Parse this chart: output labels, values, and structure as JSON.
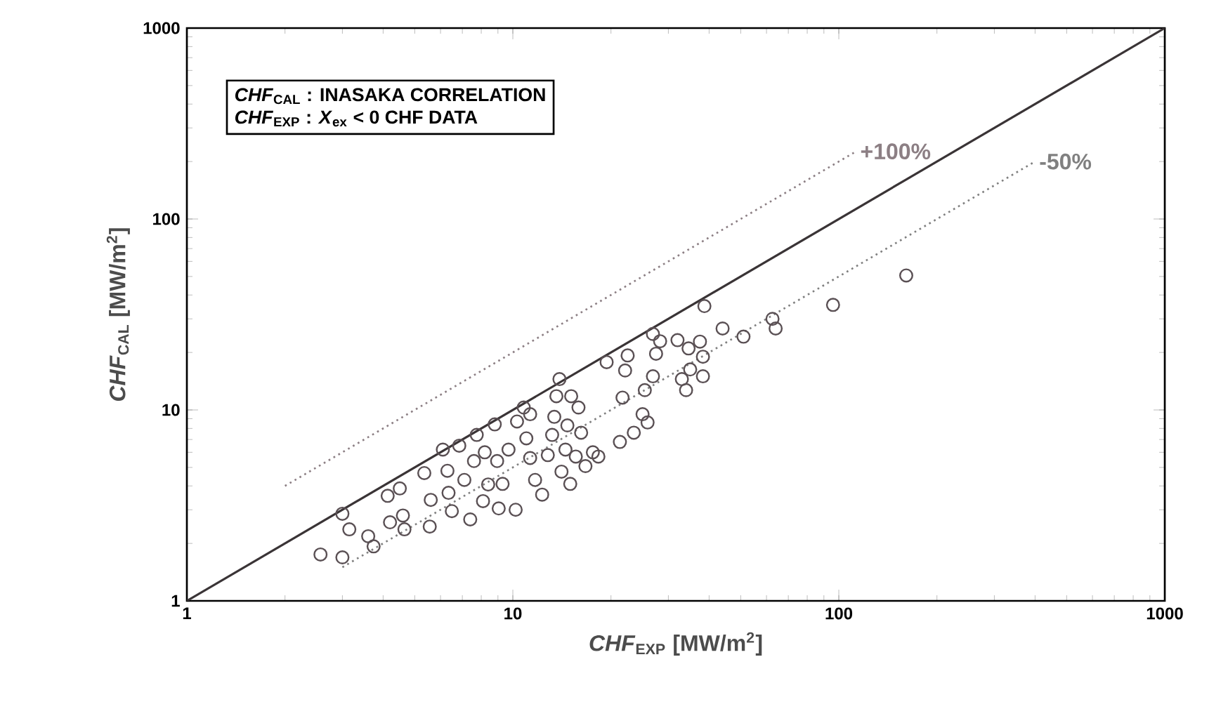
{
  "chart_data": {
    "type": "scatter",
    "xlabel": "*CHF*$_{EXP}$  [MW/m$^{2}$]",
    "ylabel": "*CHF*$_{CAL}$  [MW/m$^{2}$]",
    "log": "xy",
    "xlim": [
      1,
      1000
    ],
    "ylim": [
      1,
      1000
    ],
    "xticks": [
      1,
      10,
      100,
      1000
    ],
    "yticks": [
      1,
      10,
      100,
      1000
    ],
    "annotations": [
      "*CHF*$_{CAL}$ : INASAKA CORRELATION",
      "*CHF*$_{EXP}$ : *X*$_{ex}$ < 0 CHF DATA"
    ],
    "series": [
      {
        "color": "#5a5054",
        "marker": "circle",
        "x": [
          2.57,
          3.0,
          3.0,
          3.15,
          3.6,
          3.74,
          4.13,
          4.2,
          4.6,
          4.65,
          4.5,
          5.35,
          5.6,
          5.56,
          6.1,
          6.3,
          6.35,
          6.5,
          6.85,
          7.1,
          7.4,
          7.6,
          7.75,
          8.1,
          8.2,
          8.4,
          8.8,
          8.95,
          9.05,
          9.3,
          9.7,
          10.2,
          10.3,
          10.8,
          11.0,
          11.3,
          11.3,
          11.7,
          12.3,
          12.8,
          13.2,
          13.4,
          13.6,
          13.9,
          14.1,
          14.5,
          14.7,
          15.0,
          15.1,
          15.6,
          15.9,
          16.2,
          16.7,
          17.6,
          18.3,
          19.4,
          21.3,
          21.7,
          22.1,
          22.5,
          23.5,
          25,
          25.4,
          25.9,
          26.9,
          26.9,
          27.5,
          28.3,
          32,
          33,
          34,
          34.6,
          35,
          37.5,
          38.7,
          38.3,
          38.3,
          44,
          51,
          62.6,
          64,
          96,
          161
        ],
        "values": [
          1.75,
          1.69,
          2.86,
          2.37,
          2.18,
          1.93,
          3.55,
          2.58,
          2.8,
          2.37,
          3.88,
          4.67,
          3.38,
          2.45,
          6.2,
          4.8,
          3.68,
          2.95,
          6.5,
          4.3,
          2.67,
          5.4,
          7.4,
          3.33,
          6.0,
          4.07,
          8.4,
          5.4,
          3.05,
          4.1,
          6.2,
          3.0,
          8.7,
          10.3,
          7.1,
          5.6,
          9.5,
          4.3,
          3.6,
          5.8,
          7.4,
          9.2,
          11.8,
          14.5,
          4.75,
          6.2,
          8.3,
          4.1,
          11.8,
          5.7,
          10.3,
          7.6,
          5.08,
          6.0,
          5.7,
          17.8,
          6.8,
          11.6,
          16.1,
          19.3,
          7.6,
          9.5,
          12.7,
          8.6,
          15,
          25,
          19.7,
          22.9,
          23.2,
          14.5,
          12.7,
          21,
          16.3,
          22.8,
          35,
          15,
          19,
          26.7,
          24.2,
          30,
          26.7,
          35.5,
          50.6
        ]
      },
      {
        "type": "line",
        "color": "#3a3436",
        "line_style": "solid",
        "x": [
          1,
          1000
        ],
        "values": [
          1,
          1000
        ]
      },
      {
        "type": "line",
        "name": "+100%",
        "color": "#8c7f84",
        "line_style": "dotted",
        "x": [
          2,
          113
        ],
        "values": [
          4,
          226
        ]
      },
      {
        "type": "line",
        "name": "-50%",
        "color": "#808080",
        "line_style": "dotted",
        "x": [
          3,
          400
        ],
        "values": [
          1.5,
          200
        ]
      }
    ]
  }
}
